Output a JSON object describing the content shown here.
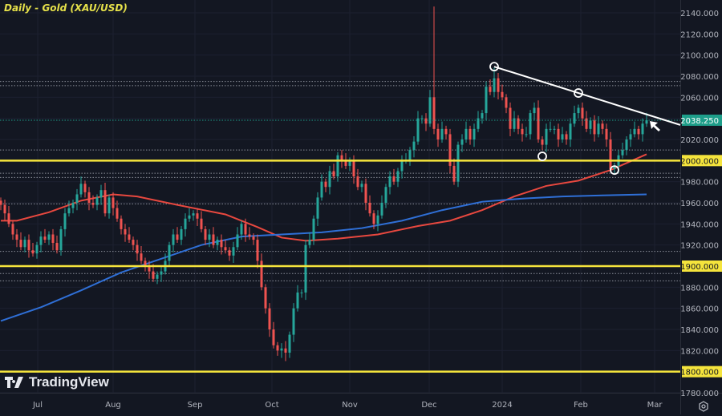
{
  "header": {
    "title": "Daily - Gold (XAU/USD)"
  },
  "branding": {
    "logo_text": "TradingView"
  },
  "icons": {
    "settings": "gear-icon",
    "logo": "tradingview-logo-icon",
    "arrow": "arrow-pointer-icon"
  },
  "colors": {
    "background": "#131722",
    "up": "#26a69a",
    "down": "#ef5350",
    "ma_fast": "#e8483f",
    "ma_slow": "#2f6fd6",
    "level": "#f5e43c",
    "trendline": "#ffffff",
    "last_price": "#1e9e8a"
  },
  "chart_data": {
    "type": "candlestick",
    "title": "Daily - Gold (XAU/USD)",
    "x_tick_labels": [
      "Jul",
      "Aug",
      "Sep",
      "Oct",
      "Nov",
      "Dec",
      "2024",
      "Feb",
      "Mar"
    ],
    "y_tick_labels": [
      "2140.000",
      "2120.000",
      "2100.000",
      "2080.000",
      "2060.000",
      "2020.000",
      "1980.000",
      "1960.000",
      "1940.000",
      "1920.000",
      "1880.000",
      "1860.000",
      "1840.000",
      "1820.000",
      "1780.000"
    ],
    "ylim": [
      1780,
      2140
    ],
    "grid": true,
    "closes": [
      1958,
      1950,
      1940,
      1930,
      1925,
      1918,
      1925,
      1915,
      1912,
      1920,
      1928,
      1925,
      1930,
      1922,
      1915,
      1935,
      1950,
      1955,
      1960,
      1968,
      1978,
      1970,
      1960,
      1958,
      1965,
      1972,
      1950,
      1965,
      1955,
      1945,
      1935,
      1930,
      1925,
      1920,
      1912,
      1905,
      1900,
      1895,
      1888,
      1892,
      1895,
      1905,
      1920,
      1930,
      1925,
      1935,
      1945,
      1948,
      1950,
      1945,
      1935,
      1925,
      1930,
      1920,
      1925,
      1918,
      1915,
      1910,
      1918,
      1930,
      1940,
      1930,
      1928,
      1925,
      1905,
      1880,
      1860,
      1840,
      1825,
      1820,
      1822,
      1818,
      1835,
      1860,
      1875,
      1875,
      1920,
      1925,
      1945,
      1965,
      1980,
      1975,
      1990,
      1985,
      2005,
      2000,
      1995,
      2000,
      1985,
      1975,
      1978,
      1960,
      1950,
      1940,
      1948,
      1960,
      1975,
      1985,
      1980,
      1990,
      2000,
      2000,
      2010,
      2018,
      2040,
      2040,
      2035,
      2060,
      2030,
      2020,
      2030,
      2025,
      1995,
      1980,
      2015,
      2020,
      2030,
      2020,
      2030,
      2040,
      2045,
      2070,
      2065,
      2078,
      2065,
      2060,
      2050,
      2030,
      2040,
      2030,
      2025,
      2025,
      2045,
      2050,
      2020,
      2015,
      2030,
      2030,
      2030,
      2020,
      2025,
      2020,
      2035,
      2045,
      2050,
      2040,
      2030,
      2038,
      2025,
      2035,
      2030,
      2020,
      1992,
      1995,
      2005,
      2010,
      2020,
      2025,
      2030,
      2025,
      2035,
      2038.25
    ],
    "wick_extremes": [
      {
        "index": 108,
        "high": 2146
      },
      {
        "index": 123,
        "high": 2088
      },
      {
        "index": 71,
        "low": 1810
      }
    ],
    "moving_averages": [
      {
        "color": "#e8483f",
        "points": [
          [
            0,
            1943
          ],
          [
            4,
            1943
          ],
          [
            12,
            1951
          ],
          [
            20,
            1962
          ],
          [
            28,
            1968
          ],
          [
            34,
            1966
          ],
          [
            44,
            1958
          ],
          [
            56,
            1949
          ],
          [
            64,
            1937
          ],
          [
            70,
            1927
          ],
          [
            76,
            1924
          ],
          [
            84,
            1926
          ],
          [
            94,
            1930
          ],
          [
            104,
            1938
          ],
          [
            112,
            1943
          ],
          [
            120,
            1953
          ],
          [
            128,
            1966
          ],
          [
            136,
            1976
          ],
          [
            144,
            1981
          ],
          [
            152,
            1991
          ],
          [
            161,
            2006
          ]
        ]
      },
      {
        "color": "#2f6fd6",
        "points": [
          [
            0,
            1848
          ],
          [
            10,
            1861
          ],
          [
            20,
            1877
          ],
          [
            30,
            1894
          ],
          [
            40,
            1907
          ],
          [
            50,
            1920
          ],
          [
            60,
            1928
          ],
          [
            70,
            1930
          ],
          [
            80,
            1932
          ],
          [
            90,
            1936
          ],
          [
            100,
            1943
          ],
          [
            110,
            1953
          ],
          [
            120,
            1961
          ],
          [
            130,
            1964
          ],
          [
            140,
            1966
          ],
          [
            150,
            1967
          ],
          [
            161,
            1968
          ]
        ]
      }
    ],
    "horizontal_levels": [
      {
        "price": 2000,
        "label": "2000.000"
      },
      {
        "price": 1900,
        "label": "1900.000"
      },
      {
        "price": 1800,
        "label": "1800.000"
      }
    ],
    "dotted_levels": [
      2075,
      2071,
      2010,
      1988,
      1984,
      1959,
      1914,
      1893,
      1886
    ],
    "last_price": {
      "value": 2038.25,
      "label": "2038.250"
    },
    "trendline": {
      "from": {
        "index": 123,
        "price": 2089
      },
      "through": {
        "index": 144,
        "price": 2064
      }
    },
    "marked_points": [
      {
        "index": 123,
        "price": 2089
      },
      {
        "index": 144,
        "price": 2064
      },
      {
        "index": 135,
        "price": 2004
      },
      {
        "index": 153,
        "price": 1991
      }
    ]
  }
}
